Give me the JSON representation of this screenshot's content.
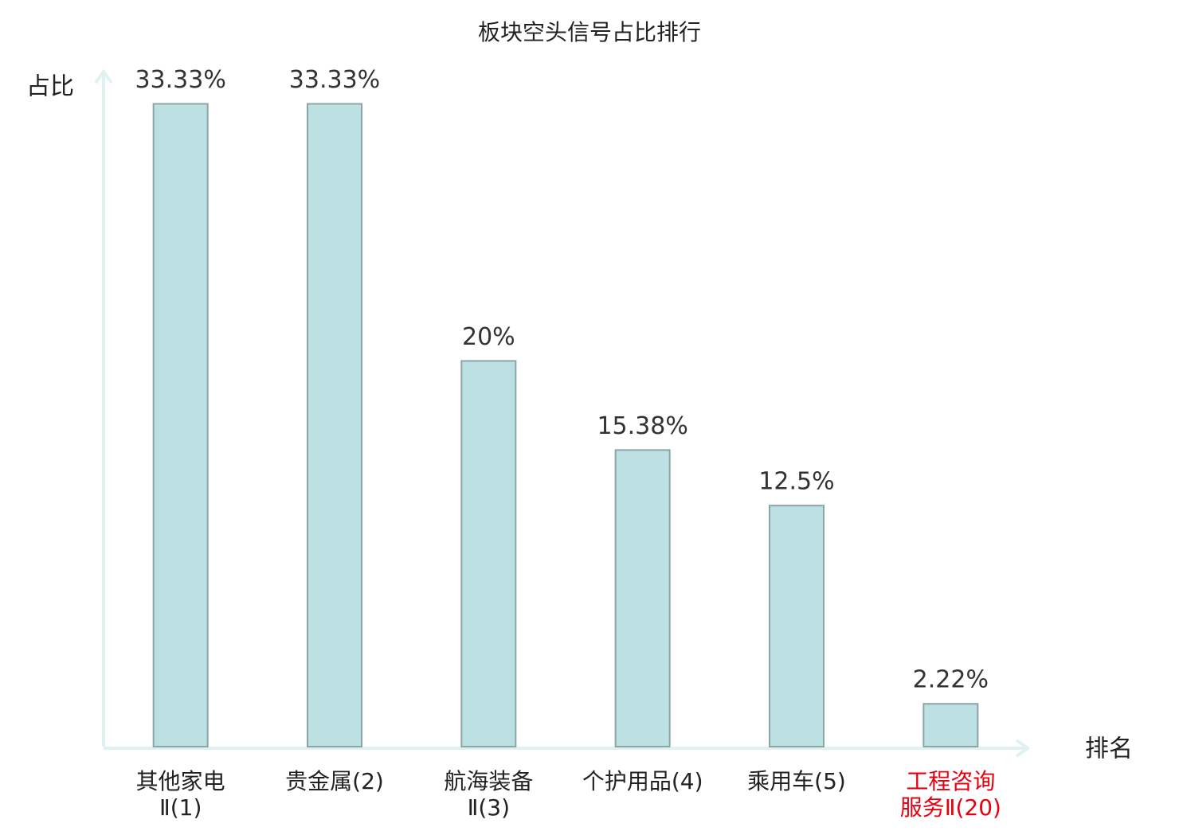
{
  "chart_data": {
    "type": "bar",
    "title": "板块空头信号占比排行",
    "y_label": "占比",
    "x_label": "排名",
    "categories": [
      "其他家电\nⅡ(1)",
      "贵金属(2)",
      "航海装备\nⅡ(3)",
      "个护用品(4)",
      "乘用车(5)",
      "工程咨询\n服务Ⅱ(20)"
    ],
    "values": [
      33.33,
      33.33,
      20,
      15.38,
      12.5,
      2.22
    ],
    "value_labels": [
      "33.33%",
      "33.33%",
      "20%",
      "15.38%",
      "12.5%",
      "2.22%"
    ],
    "color": "#bde0e3",
    "edge_color": "#8aa6a8",
    "axis_color": "#dff2ef",
    "highlight": {
      "index": 5,
      "color": "#e60012"
    },
    "ylim": [
      0,
      35
    ]
  }
}
